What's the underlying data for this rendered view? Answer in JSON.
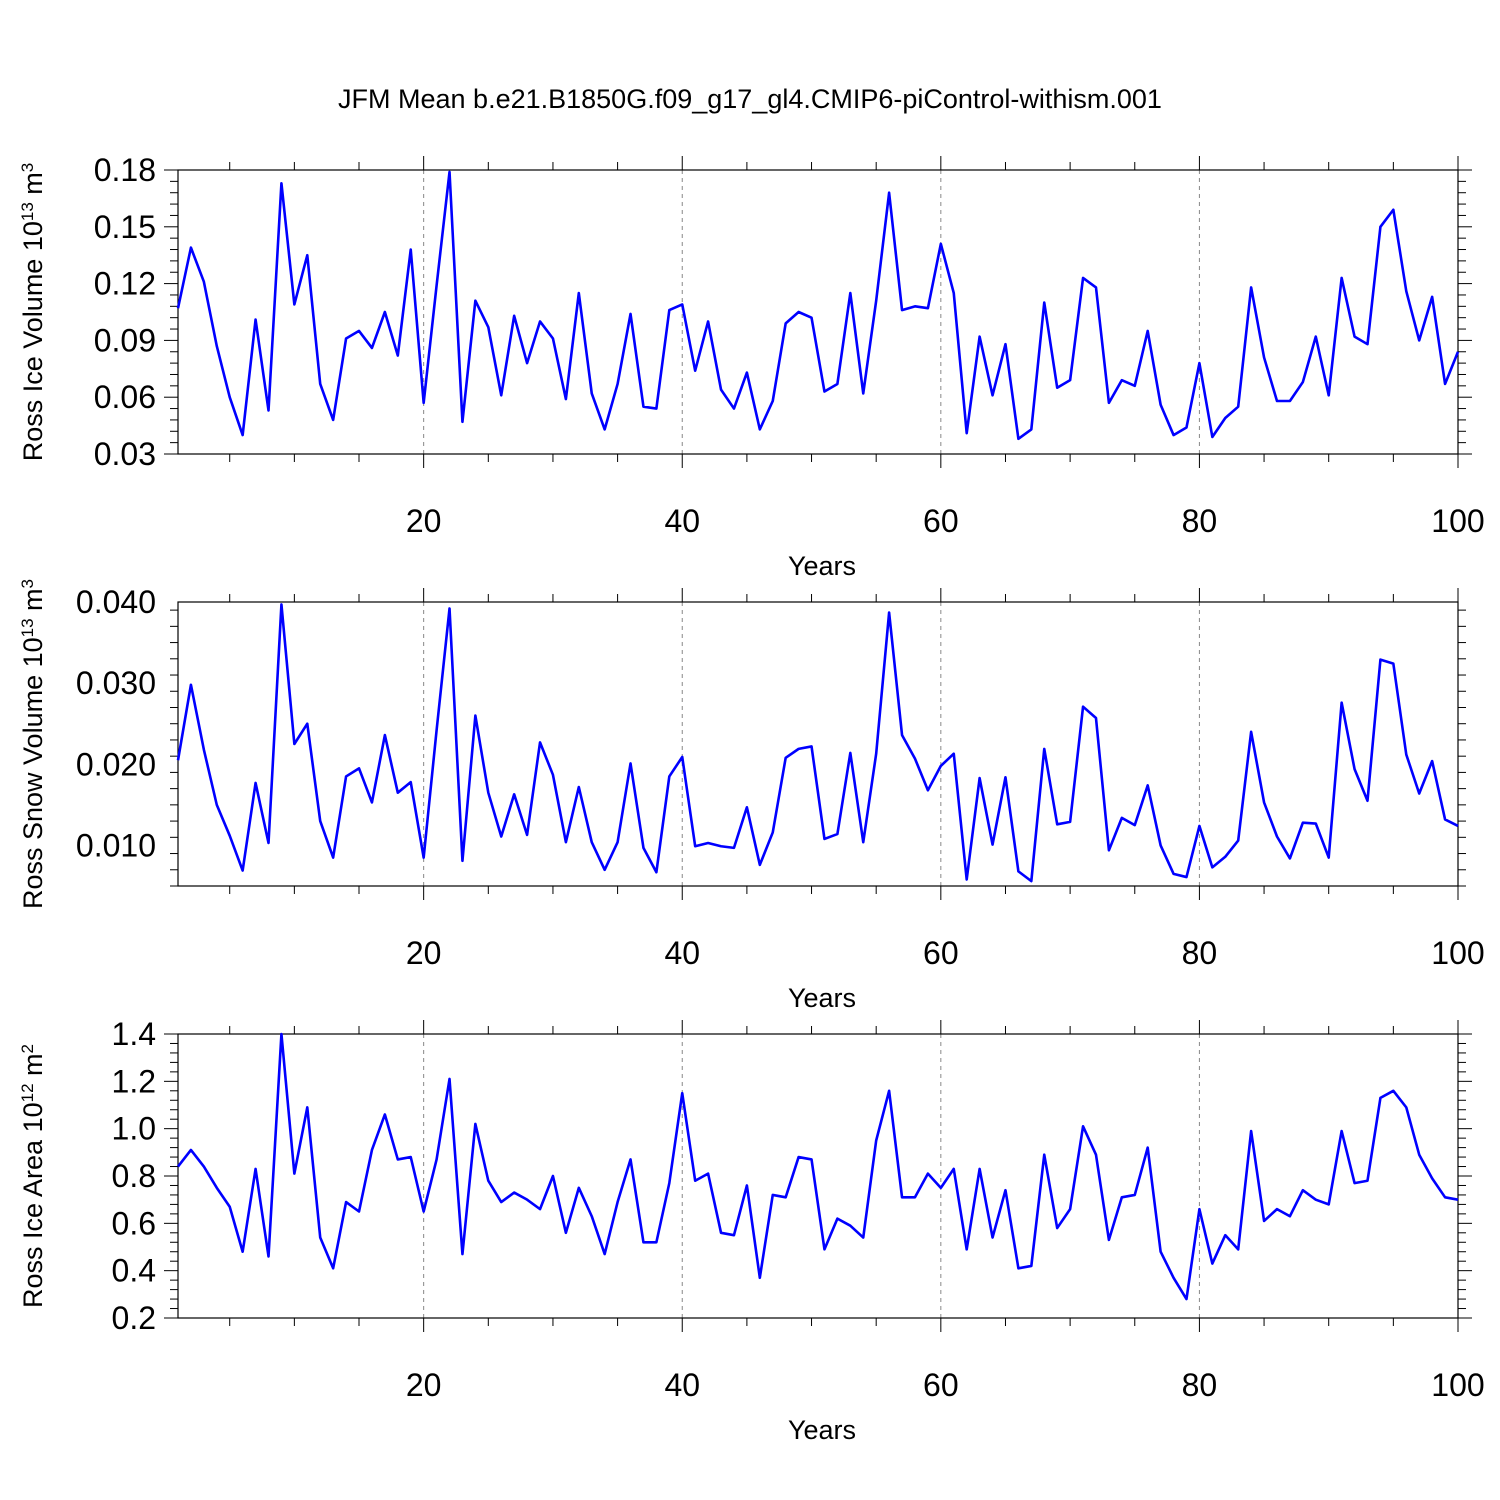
{
  "title": "JFM Mean b.e21.B1850G.f09_g17_gl4.CMIP6-piControl-withism.001",
  "colors": {
    "line": "#0000ff",
    "axis": "#000000",
    "grid": "#888888",
    "background": "#ffffff"
  },
  "chart_data": [
    {
      "type": "line",
      "name": "ross-ice-volume",
      "ylabel": {
        "base": "Ross Ice Volume 10",
        "exp1": "13",
        "unit": " m",
        "exp2": "3"
      },
      "xlabel": "Years",
      "xlim": [
        1,
        100
      ],
      "ylim": [
        0.03,
        0.18
      ],
      "yticks": [
        0.03,
        0.06,
        0.09,
        0.12,
        0.15,
        0.18
      ],
      "ytick_labels": [
        "0.03",
        "0.06",
        "0.09",
        "0.12",
        "0.15",
        "0.18"
      ],
      "xticks": [
        20,
        40,
        60,
        80,
        100
      ],
      "xtick_labels": [
        "20",
        "40",
        "60",
        "80",
        "100"
      ],
      "grid_x": [
        20,
        40,
        60,
        80
      ],
      "x_start": 1,
      "values": [
        0.107,
        0.139,
        0.121,
        0.087,
        0.06,
        0.04,
        0.101,
        0.053,
        0.173,
        0.109,
        0.135,
        0.067,
        0.048,
        0.091,
        0.095,
        0.086,
        0.105,
        0.082,
        0.138,
        0.057,
        0.119,
        0.179,
        0.047,
        0.111,
        0.097,
        0.061,
        0.103,
        0.078,
        0.1,
        0.091,
        0.059,
        0.115,
        0.062,
        0.043,
        0.067,
        0.104,
        0.055,
        0.054,
        0.106,
        0.109,
        0.074,
        0.1,
        0.064,
        0.054,
        0.073,
        0.043,
        0.058,
        0.099,
        0.105,
        0.102,
        0.063,
        0.067,
        0.115,
        0.062,
        0.111,
        0.168,
        0.106,
        0.108,
        0.107,
        0.141,
        0.115,
        0.041,
        0.092,
        0.061,
        0.088,
        0.038,
        0.043,
        0.11,
        0.065,
        0.069,
        0.123,
        0.118,
        0.057,
        0.069,
        0.066,
        0.095,
        0.056,
        0.04,
        0.044,
        0.078,
        0.039,
        0.049,
        0.055,
        0.118,
        0.081,
        0.058,
        0.058,
        0.068,
        0.092,
        0.061,
        0.123,
        0.092,
        0.088,
        0.15,
        0.159,
        0.116,
        0.09,
        0.113,
        0.067,
        0.084
      ]
    },
    {
      "type": "line",
      "name": "ross-snow-volume",
      "ylabel": {
        "base": "Ross Snow Volume 10",
        "exp1": "13",
        "unit": " m",
        "exp2": "3"
      },
      "xlabel": "Years",
      "xlim": [
        1,
        100
      ],
      "ylim": [
        0.005,
        0.04
      ],
      "yticks": [
        0.01,
        0.02,
        0.03,
        0.04
      ],
      "ytick_labels": [
        "0.010",
        "0.020",
        "0.030",
        "0.040"
      ],
      "xticks": [
        20,
        40,
        60,
        80,
        100
      ],
      "xtick_labels": [
        "20",
        "40",
        "60",
        "80",
        "100"
      ],
      "grid_x": [
        20,
        40,
        60,
        80
      ],
      "x_start": 1,
      "values": [
        0.0205,
        0.0298,
        0.0218,
        0.015,
        0.0112,
        0.0069,
        0.0177,
        0.0103,
        0.0397,
        0.0225,
        0.025,
        0.013,
        0.0085,
        0.0185,
        0.0195,
        0.0153,
        0.0236,
        0.0165,
        0.0178,
        0.0085,
        0.0242,
        0.0392,
        0.0081,
        0.026,
        0.0165,
        0.0111,
        0.0163,
        0.0113,
        0.0227,
        0.0187,
        0.0104,
        0.0172,
        0.0104,
        0.007,
        0.0104,
        0.0201,
        0.0097,
        0.0067,
        0.0185,
        0.0209,
        0.0099,
        0.0103,
        0.0099,
        0.0097,
        0.0147,
        0.0076,
        0.0116,
        0.0208,
        0.0219,
        0.0222,
        0.0108,
        0.0114,
        0.0214,
        0.0104,
        0.0213,
        0.0387,
        0.0236,
        0.0207,
        0.0168,
        0.0198,
        0.0213,
        0.0058,
        0.0183,
        0.0101,
        0.0184,
        0.0068,
        0.0056,
        0.0219,
        0.0126,
        0.0129,
        0.0271,
        0.0257,
        0.0094,
        0.0134,
        0.0125,
        0.0174,
        0.01,
        0.0065,
        0.0061,
        0.0124,
        0.0073,
        0.0086,
        0.0106,
        0.024,
        0.0153,
        0.0111,
        0.0084,
        0.0128,
        0.0127,
        0.0085,
        0.0276,
        0.0194,
        0.0155,
        0.0329,
        0.0324,
        0.0212,
        0.0164,
        0.0204,
        0.0132,
        0.0124
      ]
    },
    {
      "type": "line",
      "name": "ross-ice-area",
      "ylabel": {
        "base": "Ross Ice Area 10",
        "exp1": "12",
        "unit": " m",
        "exp2": "2"
      },
      "xlabel": "Years",
      "xlim": [
        1,
        100
      ],
      "ylim": [
        0.2,
        1.4
      ],
      "yticks": [
        0.2,
        0.4,
        0.6,
        0.8,
        1.0,
        1.2,
        1.4
      ],
      "ytick_labels": [
        "0.2",
        "0.4",
        "0.6",
        "0.8",
        "1.0",
        "1.2",
        "1.4"
      ],
      "xticks": [
        20,
        40,
        60,
        80,
        100
      ],
      "xtick_labels": [
        "20",
        "40",
        "60",
        "80",
        "100"
      ],
      "grid_x": [
        20,
        40,
        60,
        80
      ],
      "x_start": 1,
      "values": [
        0.84,
        0.91,
        0.84,
        0.75,
        0.67,
        0.48,
        0.83,
        0.46,
        1.4,
        0.81,
        1.09,
        0.54,
        0.41,
        0.69,
        0.65,
        0.91,
        1.06,
        0.87,
        0.88,
        0.65,
        0.87,
        1.21,
        0.47,
        1.02,
        0.78,
        0.69,
        0.73,
        0.7,
        0.66,
        0.8,
        0.56,
        0.75,
        0.63,
        0.47,
        0.69,
        0.87,
        0.52,
        0.52,
        0.77,
        1.15,
        0.78,
        0.81,
        0.56,
        0.55,
        0.76,
        0.37,
        0.72,
        0.71,
        0.88,
        0.87,
        0.49,
        0.62,
        0.59,
        0.54,
        0.95,
        1.16,
        0.71,
        0.71,
        0.81,
        0.75,
        0.83,
        0.49,
        0.83,
        0.54,
        0.74,
        0.41,
        0.42,
        0.89,
        0.58,
        0.66,
        1.01,
        0.89,
        0.53,
        0.71,
        0.72,
        0.92,
        0.48,
        0.37,
        0.28,
        0.66,
        0.43,
        0.55,
        0.49,
        0.99,
        0.61,
        0.66,
        0.63,
        0.74,
        0.7,
        0.68,
        0.99,
        0.77,
        0.78,
        1.13,
        1.16,
        1.09,
        0.89,
        0.79,
        0.71,
        0.7
      ]
    }
  ]
}
